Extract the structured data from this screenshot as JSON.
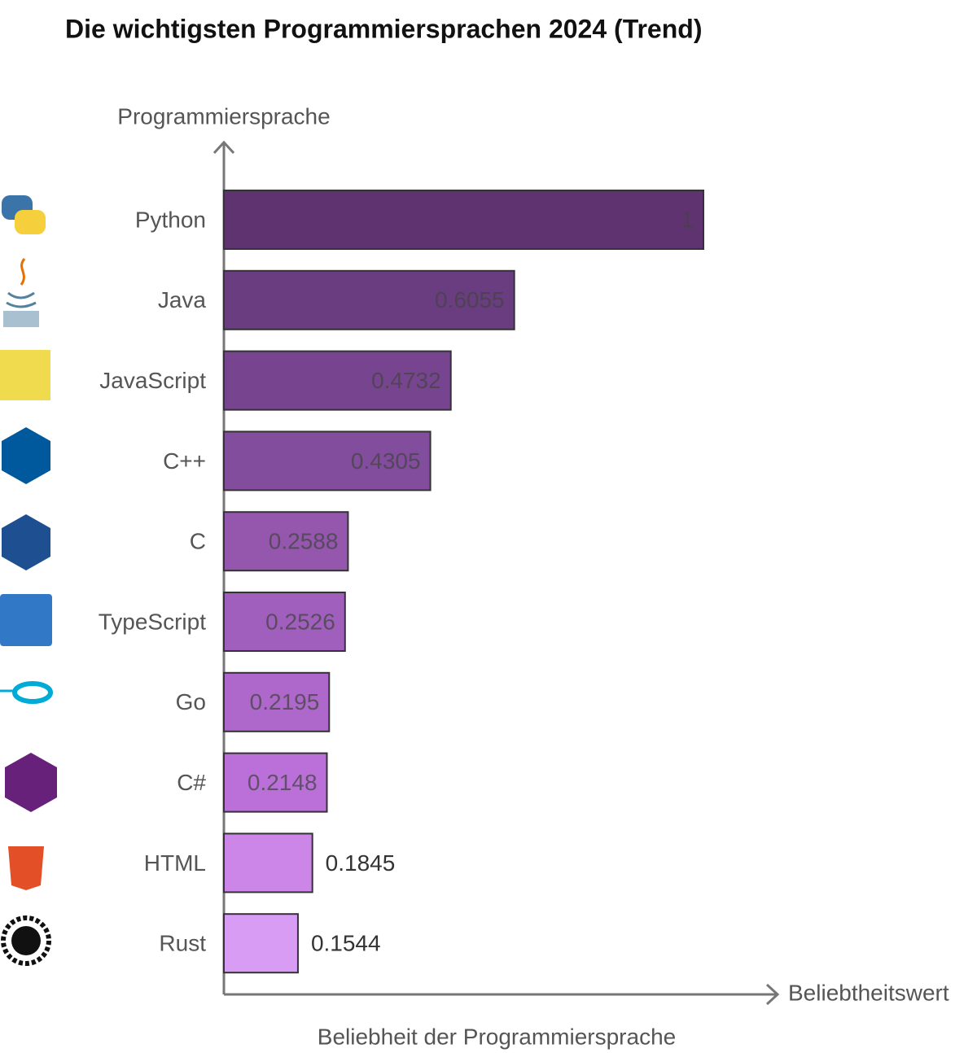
{
  "chart_data": {
    "type": "hbar",
    "title": "Die wichtigsten Programmiersprachen 2024 (Trend)",
    "y_label": "Programmiersprache",
    "x_label": "Beliebtheitswert",
    "caption": "Beliebheit der Programmiersprache",
    "categories": [
      "Python",
      "Java",
      "JavaScript",
      "C++",
      "C",
      "TypeScript",
      "Go",
      "C#",
      "HTML",
      "Rust"
    ],
    "values": [
      1,
      0.6055,
      0.4732,
      0.4305,
      0.2588,
      0.2526,
      0.2195,
      0.2148,
      0.1845,
      0.1544
    ],
    "colors": [
      "#5e3370",
      "#6a3c80",
      "#77448f",
      "#834d9d",
      "#9457ad",
      "#a15fbd",
      "#ae68cb",
      "#bb70d9",
      "#cc86e8",
      "#d99cf5"
    ],
    "xlim": [
      0,
      1
    ]
  }
}
